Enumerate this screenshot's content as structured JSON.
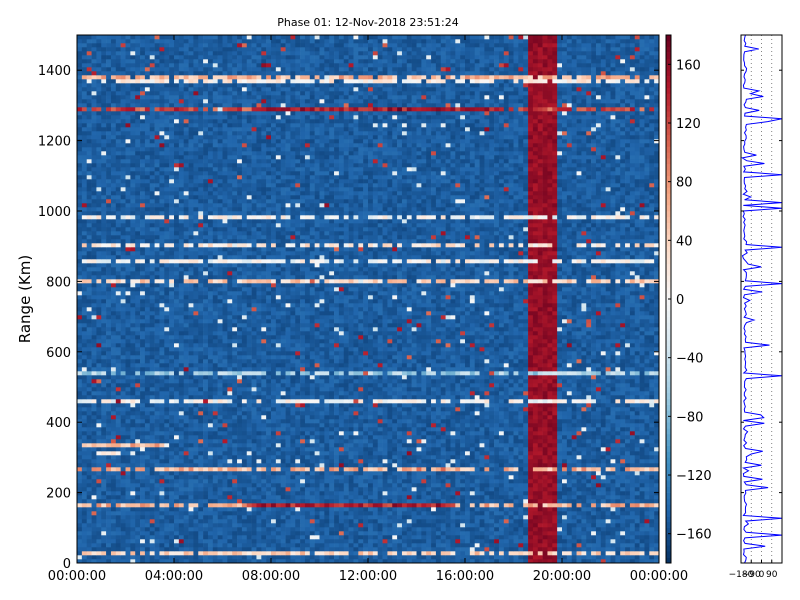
{
  "chart_data": [
    {
      "type": "heatmap",
      "title": "Phase 01: 12-Nov-2018 23:51:24",
      "ylabel": "Range (Km)",
      "xlabel": "",
      "x_tick_labels": [
        "00:00:00",
        "04:00:00",
        "08:00:00",
        "12:00:00",
        "16:00:00",
        "20:00:00",
        "00:00:00"
      ],
      "x_range_hours": [
        0,
        24
      ],
      "y_ticks": [
        0,
        200,
        400,
        600,
        800,
        1000,
        1200,
        1400
      ],
      "ylim": [
        0,
        1500
      ],
      "colorbar": {
        "ticks": [
          -160,
          -120,
          -80,
          -40,
          0,
          40,
          80,
          120,
          160
        ],
        "range": [
          -180,
          180
        ],
        "colormap": "RdBu_r"
      },
      "background_value": -150,
      "features": [
        {
          "kind": "vertical_band",
          "x_start_hours": 18.6,
          "x_end_hours": 19.7,
          "value": 170
        },
        {
          "kind": "horizontal_line",
          "y_km": 455,
          "value": 0
        },
        {
          "kind": "horizontal_line",
          "y_km": 1365,
          "value": 10
        },
        {
          "kind": "horizontal_line",
          "y_km": 1375,
          "value": 60
        },
        {
          "kind": "horizontal_line",
          "y_km": 1290,
          "value": 120
        },
        {
          "kind": "horizontal_line",
          "y_km": 980,
          "value": 0
        },
        {
          "kind": "horizontal_line",
          "y_km": 860,
          "value": 0
        },
        {
          "kind": "horizontal_line",
          "y_km": 800,
          "value": 40
        },
        {
          "kind": "horizontal_line",
          "y_km": 900,
          "value": 20
        },
        {
          "kind": "horizontal_line",
          "y_km": 540,
          "value": -60
        },
        {
          "kind": "horizontal_line",
          "y_km": 270,
          "value": 60
        },
        {
          "kind": "horizontal_line",
          "y_km": 160,
          "value": 60
        },
        {
          "kind": "horizontal_line",
          "y_km": 30,
          "value": 40
        },
        {
          "kind": "segment",
          "y_km": 162,
          "x_start_hours": 7.0,
          "x_end_hours": 15.5,
          "value": 140
        },
        {
          "kind": "segment",
          "y_km": 1295,
          "x_start_hours": 7.5,
          "x_end_hours": 17.5,
          "value": 150
        },
        {
          "kind": "segment",
          "y_km": 340,
          "x_start_hours": 0.3,
          "x_end_hours": 3.5,
          "value": 60
        },
        {
          "kind": "segment",
          "y_km": 310,
          "x_start_hours": 0.8,
          "x_end_hours": 1.8,
          "value": 0
        }
      ]
    },
    {
      "type": "line",
      "x_tick_labels": [
        "-180",
        "-90",
        "0",
        "90"
      ],
      "xlim": [
        -180,
        180
      ],
      "ylim": [
        0,
        1500
      ],
      "series_color": "#0000ff"
    }
  ]
}
